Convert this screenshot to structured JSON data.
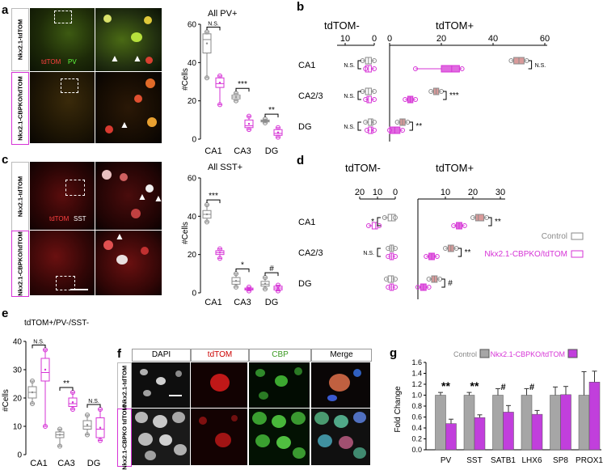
{
  "panels": {
    "a": {
      "label": "a",
      "row_labels": [
        "Nkx2.1-tdTOM",
        "Nkx2.1-CBPKO/tdTOM"
      ],
      "stain_red": "tdTOM",
      "stain_green": "PV",
      "chart_title": "All PV+",
      "ylabel": "#Cells",
      "categories": [
        "CA1",
        "CA3",
        "DG"
      ],
      "sig": [
        "N.S.",
        "***",
        "**"
      ]
    },
    "b": {
      "label": "b",
      "left_title": "tdTOM-",
      "right_title": "tdTOM+",
      "left_ticks": [
        "10",
        "0"
      ],
      "right_ticks": [
        "0",
        "20",
        "40",
        "60"
      ],
      "categories": [
        "CA1",
        "CA2/3",
        "DG"
      ],
      "left_sig": [
        "N.S.",
        "N.S.",
        "N.S."
      ],
      "right_sig": [
        "N.S.",
        "***",
        "**"
      ]
    },
    "c": {
      "label": "c",
      "row_labels": [
        "Nkx2.1-tdTOM",
        "Nkx2.1-CBPKO/tdTOM"
      ],
      "stain_red": "tdTOM",
      "stain_white": "SST",
      "chart_title": "All SST+",
      "ylabel": "#Cells",
      "categories": [
        "CA1",
        "CA3",
        "DG"
      ],
      "sig": [
        "***",
        "*",
        "#"
      ]
    },
    "d": {
      "label": "d",
      "left_title": "tdTOM-",
      "right_title": "tdTOM+",
      "left_ticks": [
        "20",
        "10",
        "0"
      ],
      "right_ticks": [
        "10",
        "20",
        "30"
      ],
      "categories": [
        "CA1",
        "CA2/3",
        "DG"
      ],
      "left_sig": [
        "*",
        "N.S.",
        ""
      ],
      "right_sig": [
        "**",
        "**",
        "#"
      ],
      "legend": [
        "Control",
        "Nkx2.1-CBPKO/tdTOM"
      ]
    },
    "e": {
      "label": "e",
      "chart_title": "tdTOM+/PV-/SST-",
      "ylabel": "#Cells",
      "categories": [
        "CA1",
        "CA3",
        "DG"
      ],
      "sig": [
        "N.S.",
        "**",
        "N.S."
      ]
    },
    "f": {
      "label": "f",
      "headers": [
        "DAPI",
        "tdTOM",
        "CBP",
        "Merge"
      ],
      "row_labels": [
        "Nkx2.1-tdTOM",
        "Nkx2.1-CBPKO tdTOM"
      ]
    },
    "g": {
      "label": "g",
      "legend": [
        "Control",
        "Nkx2.1-CBPKO/tdTOM"
      ],
      "ylabel": "Fold Change",
      "categories": [
        "PV",
        "SST",
        "SATB1",
        "LHX6",
        "SP8",
        "PROX1"
      ],
      "sig": [
        "**",
        "**",
        "#",
        "#",
        "",
        ""
      ]
    }
  },
  "colors": {
    "control": "#a6a6a6",
    "ko": "#c13fdc",
    "mag": "#d633d6"
  },
  "chart_data": [
    {
      "type": "box",
      "panel": "a",
      "title": "All PV+",
      "ylabel": "#Cells",
      "ylim": [
        0,
        60
      ],
      "yticks": [
        0,
        20,
        40,
        60
      ],
      "categories": [
        "CA1",
        "CA3",
        "DG"
      ],
      "series": [
        {
          "name": "Control",
          "median": [
            52,
            22,
            9.5
          ],
          "q1": [
            45,
            21,
            9
          ],
          "q3": [
            55,
            23,
            10
          ],
          "min": [
            32,
            20,
            8.5
          ],
          "max": [
            56,
            24,
            10.5
          ]
        },
        {
          "name": "Nkx2.1-CBPKO/tdTOM",
          "median": [
            29,
            7,
            3
          ],
          "q1": [
            27,
            6,
            2
          ],
          "q3": [
            32,
            10,
            5
          ],
          "min": [
            18,
            5,
            1
          ],
          "max": [
            33,
            12,
            6
          ]
        }
      ]
    },
    {
      "type": "box",
      "panel": "b",
      "orientation": "horizontal",
      "categories": [
        "CA1",
        "CA2/3",
        "DG"
      ],
      "series": [
        {
          "name": "Control tdTOM-",
          "median": [
            2,
            2,
            1
          ],
          "q1": [
            1,
            1,
            0.5
          ],
          "q3": [
            3,
            3,
            2
          ],
          "min": [
            0,
            0,
            0
          ],
          "max": [
            4,
            4,
            3
          ]
        },
        {
          "name": "KO tdTOM-",
          "median": [
            2,
            2,
            1
          ],
          "q1": [
            1,
            1,
            0.5
          ],
          "q3": [
            3,
            2.5,
            2
          ],
          "min": [
            0,
            0,
            0
          ],
          "max": [
            3,
            3,
            2.5
          ]
        },
        {
          "name": "Control tdTOM+",
          "median": [
            50,
            18,
            5
          ],
          "q1": [
            48,
            17,
            4
          ],
          "q3": [
            52,
            19,
            6
          ],
          "min": [
            47,
            16,
            3
          ],
          "max": [
            53,
            20,
            7
          ]
        },
        {
          "name": "KO tdTOM+",
          "median": [
            24,
            8,
            2
          ],
          "q1": [
            20,
            7,
            0
          ],
          "q3": [
            27,
            9,
            4
          ],
          "min": [
            10,
            6,
            0
          ],
          "max": [
            28,
            10,
            5
          ]
        }
      ]
    },
    {
      "type": "box",
      "panel": "c",
      "title": "All SST+",
      "ylabel": "#Cells",
      "ylim": [
        0,
        60
      ],
      "yticks": [
        0,
        20,
        40,
        60
      ],
      "categories": [
        "CA1",
        "CA3",
        "DG"
      ],
      "series": [
        {
          "name": "Control",
          "median": [
            41,
            6,
            4.5
          ],
          "q1": [
            39,
            4.5,
            3.5
          ],
          "q3": [
            43,
            8,
            6
          ],
          "min": [
            37,
            3,
            2
          ],
          "max": [
            46,
            10,
            8
          ]
        },
        {
          "name": "Nkx2.1-CBPKO/tdTOM",
          "median": [
            21,
            2,
            2.5
          ],
          "q1": [
            20,
            1.5,
            1.5
          ],
          "q3": [
            22,
            2.5,
            3.5
          ],
          "min": [
            18,
            1,
            1
          ],
          "max": [
            23,
            3,
            4
          ]
        }
      ]
    },
    {
      "type": "box",
      "panel": "d",
      "orientation": "horizontal",
      "categories": [
        "CA1",
        "CA2/3",
        "DG"
      ],
      "series": [
        {
          "name": "Control tdTOM-",
          "median": [
            2,
            2,
            2
          ],
          "q1": [
            0,
            1,
            1
          ],
          "q3": [
            4,
            3,
            4
          ],
          "min": [
            0,
            0,
            0
          ],
          "max": [
            6,
            4,
            5
          ]
        },
        {
          "name": "KO tdTOM-",
          "median": [
            11,
            2,
            2
          ],
          "q1": [
            10,
            1,
            1
          ],
          "q3": [
            13,
            3,
            3
          ],
          "min": [
            9,
            0,
            0
          ],
          "max": [
            15,
            4,
            4
          ]
        },
        {
          "name": "Control tdTOM+",
          "median": [
            22,
            12,
            6
          ],
          "q1": [
            21,
            11,
            5
          ],
          "q3": [
            24,
            13,
            7
          ],
          "min": [
            20,
            10,
            4
          ],
          "max": [
            25,
            14,
            8
          ]
        },
        {
          "name": "KO tdTOM+",
          "median": [
            15,
            5,
            2
          ],
          "q1": [
            14,
            4,
            1
          ],
          "q3": [
            16,
            6,
            3
          ],
          "min": [
            13,
            3,
            0
          ],
          "max": [
            17,
            7,
            4
          ]
        }
      ]
    },
    {
      "type": "box",
      "panel": "e",
      "title": "tdTOM+/PV-/SST-",
      "ylabel": "#Cells",
      "ylim": [
        0,
        40
      ],
      "yticks": [
        0,
        10,
        20,
        30,
        40
      ],
      "categories": [
        "CA1",
        "CA3",
        "DG"
      ],
      "series": [
        {
          "name": "Control",
          "median": [
            22,
            7,
            10
          ],
          "q1": [
            20,
            6,
            9
          ],
          "q3": [
            24,
            8,
            12
          ],
          "min": [
            18,
            3,
            7
          ],
          "max": [
            26,
            9,
            14
          ]
        },
        {
          "name": "Nkx2.1-CBPKO/tdTOM",
          "median": [
            29,
            18,
            9
          ],
          "q1": [
            26,
            17,
            6
          ],
          "q3": [
            34,
            20,
            13
          ],
          "min": [
            10,
            16,
            5
          ],
          "max": [
            37,
            22,
            16
          ]
        }
      ]
    },
    {
      "type": "bar",
      "panel": "g",
      "ylabel": "Fold Change",
      "ylim": [
        0,
        1.6
      ],
      "yticks": [
        0,
        0.2,
        0.4,
        0.6,
        0.8,
        1.0,
        1.2,
        1.4,
        1.6
      ],
      "categories": [
        "PV",
        "SST",
        "SATB1",
        "LHX6",
        "SP8",
        "PROX1"
      ],
      "series": [
        {
          "name": "Control",
          "values": [
            1.0,
            1.0,
            1.0,
            1.0,
            1.0,
            1.0
          ],
          "err": [
            0.05,
            0.05,
            0.12,
            0.12,
            0.15,
            0.43
          ]
        },
        {
          "name": "Nkx2.1-CBPKO/tdTOM",
          "values": [
            0.48,
            0.59,
            0.69,
            0.65,
            1.01,
            1.24
          ],
          "err": [
            0.08,
            0.05,
            0.12,
            0.07,
            0.15,
            0.2
          ]
        }
      ]
    }
  ]
}
